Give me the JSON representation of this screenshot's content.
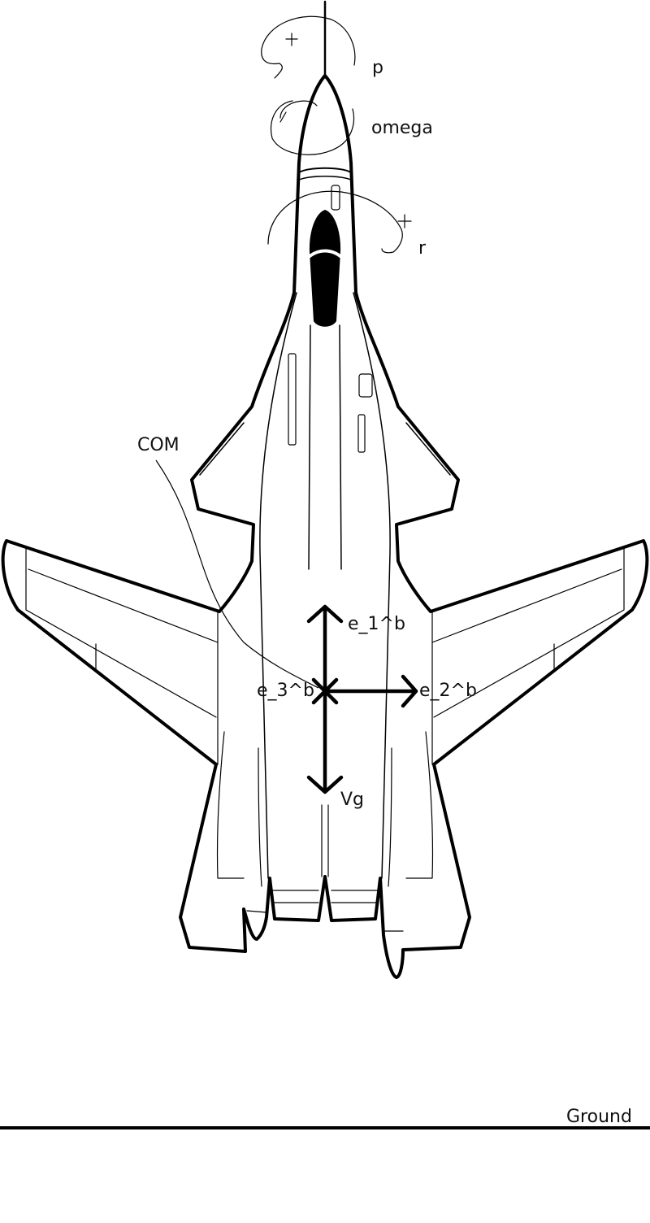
{
  "labels": {
    "p": "p",
    "omega": "omega",
    "r": "r",
    "com": "COM",
    "e1": "e_1^b",
    "e2": "e_2^b",
    "e3": "e_3^b",
    "vg": "Vg",
    "ground": "Ground"
  },
  "colors": {
    "ink": "#000000",
    "cockpit": "#000000",
    "background": "#ffffff"
  }
}
